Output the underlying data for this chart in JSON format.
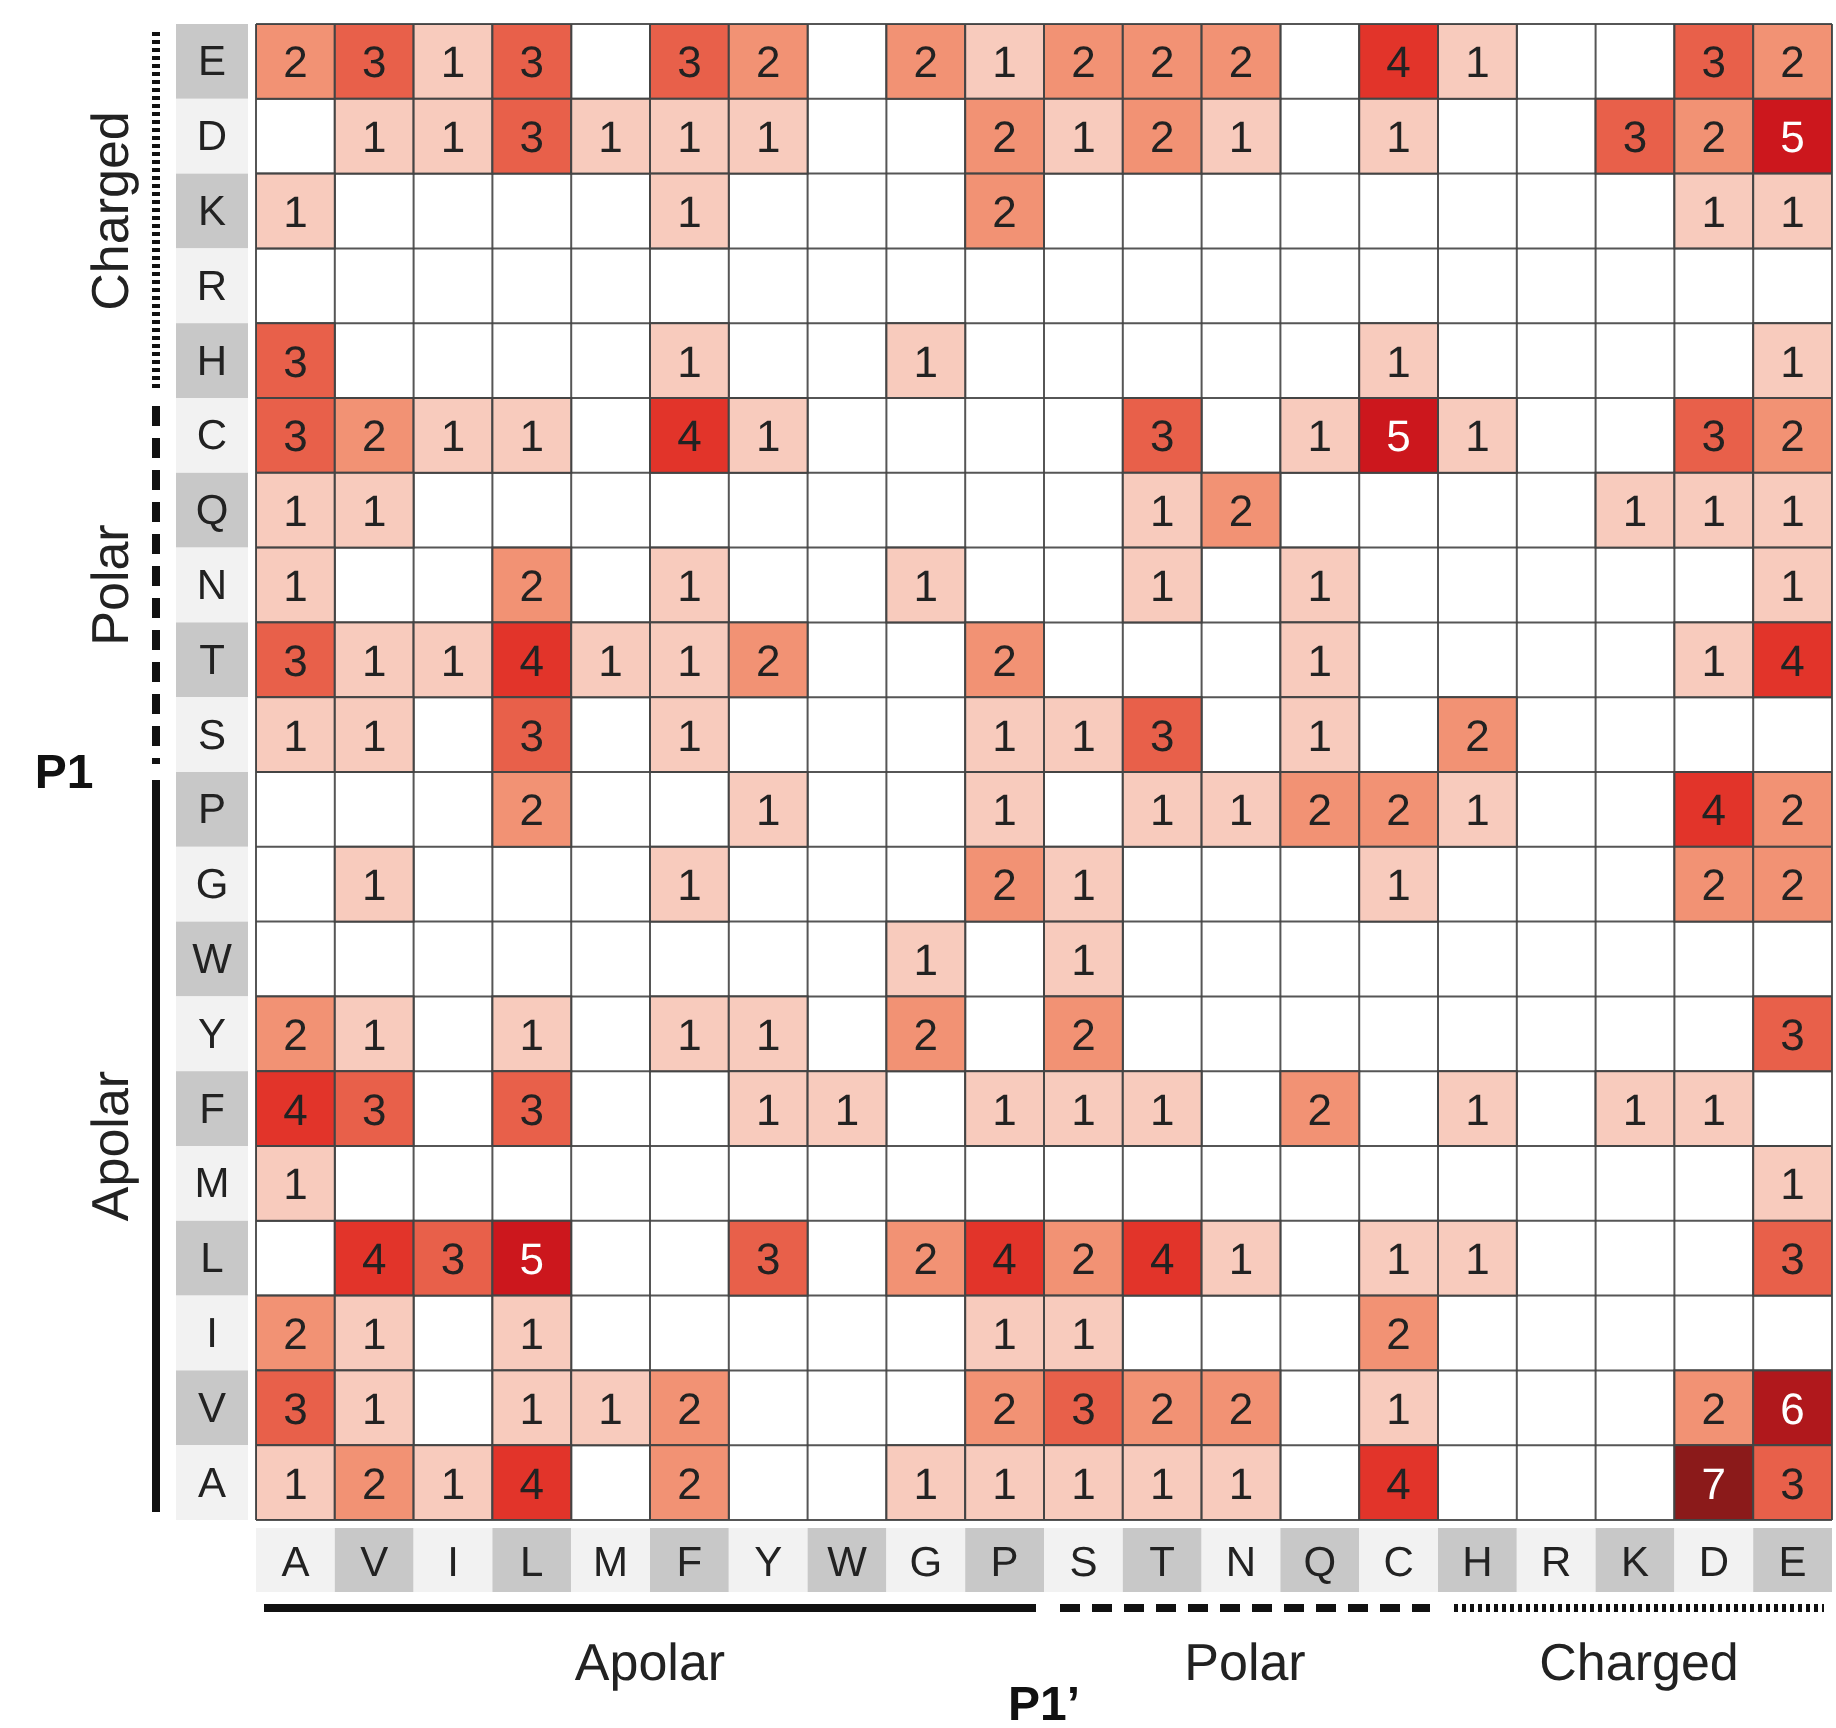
{
  "chart_data": {
    "type": "heatmap",
    "xlabel": "P1’",
    "annotations": [
      "Apolar",
      "Polar",
      "Charged",
      "Charged",
      "Polar",
      "Apolar",
      "P1"
    ],
    "categories": [
      "A",
      "V",
      "I",
      "L",
      "M",
      "F",
      "Y",
      "W",
      "G",
      "P",
      "S",
      "T",
      "N",
      "Q",
      "C",
      "H",
      "R",
      "K",
      "D",
      "E"
    ],
    "y_categories": [
      "E",
      "D",
      "K",
      "R",
      "H",
      "C",
      "Q",
      "N",
      "T",
      "S",
      "P",
      "G",
      "W",
      "Y",
      "F",
      "M",
      "L",
      "I",
      "V",
      "A"
    ],
    "cells": [
      [
        2,
        3,
        1,
        3,
        null,
        3,
        2,
        null,
        2,
        1,
        2,
        2,
        2,
        null,
        4,
        1,
        null,
        null,
        3,
        2
      ],
      [
        null,
        1,
        1,
        3,
        1,
        1,
        1,
        null,
        null,
        2,
        1,
        2,
        1,
        null,
        1,
        null,
        null,
        3,
        2,
        5
      ],
      [
        1,
        null,
        null,
        null,
        null,
        1,
        null,
        null,
        null,
        2,
        null,
        null,
        null,
        null,
        null,
        null,
        null,
        null,
        1,
        1
      ],
      [
        null,
        null,
        null,
        null,
        null,
        null,
        null,
        null,
        null,
        null,
        null,
        null,
        null,
        null,
        null,
        null,
        null,
        null,
        null,
        null
      ],
      [
        3,
        null,
        null,
        null,
        null,
        1,
        null,
        null,
        1,
        null,
        null,
        null,
        null,
        null,
        1,
        null,
        null,
        null,
        null,
        1
      ],
      [
        3,
        2,
        1,
        1,
        null,
        4,
        1,
        null,
        null,
        null,
        null,
        3,
        null,
        1,
        5,
        1,
        null,
        null,
        3,
        2
      ],
      [
        1,
        1,
        null,
        null,
        null,
        null,
        null,
        null,
        null,
        null,
        null,
        1,
        2,
        null,
        null,
        null,
        null,
        1,
        1,
        1
      ],
      [
        1,
        null,
        null,
        2,
        null,
        1,
        null,
        null,
        1,
        null,
        null,
        1,
        null,
        1,
        null,
        null,
        null,
        null,
        null,
        1
      ],
      [
        3,
        1,
        1,
        4,
        1,
        1,
        2,
        null,
        null,
        2,
        null,
        null,
        null,
        1,
        null,
        null,
        null,
        null,
        1,
        4
      ],
      [
        1,
        1,
        null,
        3,
        null,
        1,
        null,
        null,
        null,
        1,
        1,
        3,
        null,
        1,
        null,
        2,
        null,
        null,
        null,
        null
      ],
      [
        null,
        null,
        null,
        2,
        null,
        null,
        1,
        null,
        null,
        1,
        null,
        1,
        1,
        2,
        2,
        1,
        null,
        null,
        4,
        2
      ],
      [
        null,
        1,
        null,
        null,
        null,
        1,
        null,
        null,
        null,
        2,
        1,
        null,
        null,
        null,
        1,
        null,
        null,
        null,
        2,
        2
      ],
      [
        null,
        null,
        null,
        null,
        null,
        null,
        null,
        null,
        1,
        null,
        1,
        null,
        null,
        null,
        null,
        null,
        null,
        null,
        null,
        null
      ],
      [
        2,
        1,
        null,
        1,
        null,
        1,
        1,
        null,
        2,
        null,
        2,
        null,
        null,
        null,
        null,
        null,
        null,
        null,
        null,
        3
      ],
      [
        4,
        3,
        null,
        3,
        null,
        null,
        1,
        1,
        null,
        1,
        1,
        1,
        null,
        2,
        null,
        1,
        null,
        1,
        1,
        null
      ],
      [
        1,
        null,
        null,
        null,
        null,
        null,
        null,
        null,
        null,
        null,
        null,
        null,
        null,
        null,
        null,
        null,
        null,
        null,
        null,
        1
      ],
      [
        null,
        4,
        3,
        5,
        null,
        null,
        3,
        null,
        2,
        4,
        2,
        4,
        1,
        null,
        1,
        1,
        null,
        null,
        null,
        3
      ],
      [
        2,
        1,
        null,
        1,
        null,
        null,
        null,
        null,
        null,
        1,
        1,
        null,
        null,
        null,
        2,
        null,
        null,
        null,
        null,
        null
      ],
      [
        3,
        1,
        null,
        1,
        1,
        2,
        null,
        null,
        null,
        2,
        3,
        2,
        2,
        null,
        1,
        null,
        null,
        null,
        2,
        6
      ],
      [
        1,
        2,
        1,
        4,
        null,
        2,
        null,
        null,
        1,
        1,
        1,
        1,
        1,
        null,
        4,
        null,
        null,
        null,
        7,
        3
      ]
    ],
    "colors": [
      "#f8cbbd",
      "#f29274",
      "#e8604a",
      "#e2342a",
      "#cc171d",
      "#b0181c",
      "#8b1a1a"
    ],
    "grid": true,
    "data_labels": true
  }
}
